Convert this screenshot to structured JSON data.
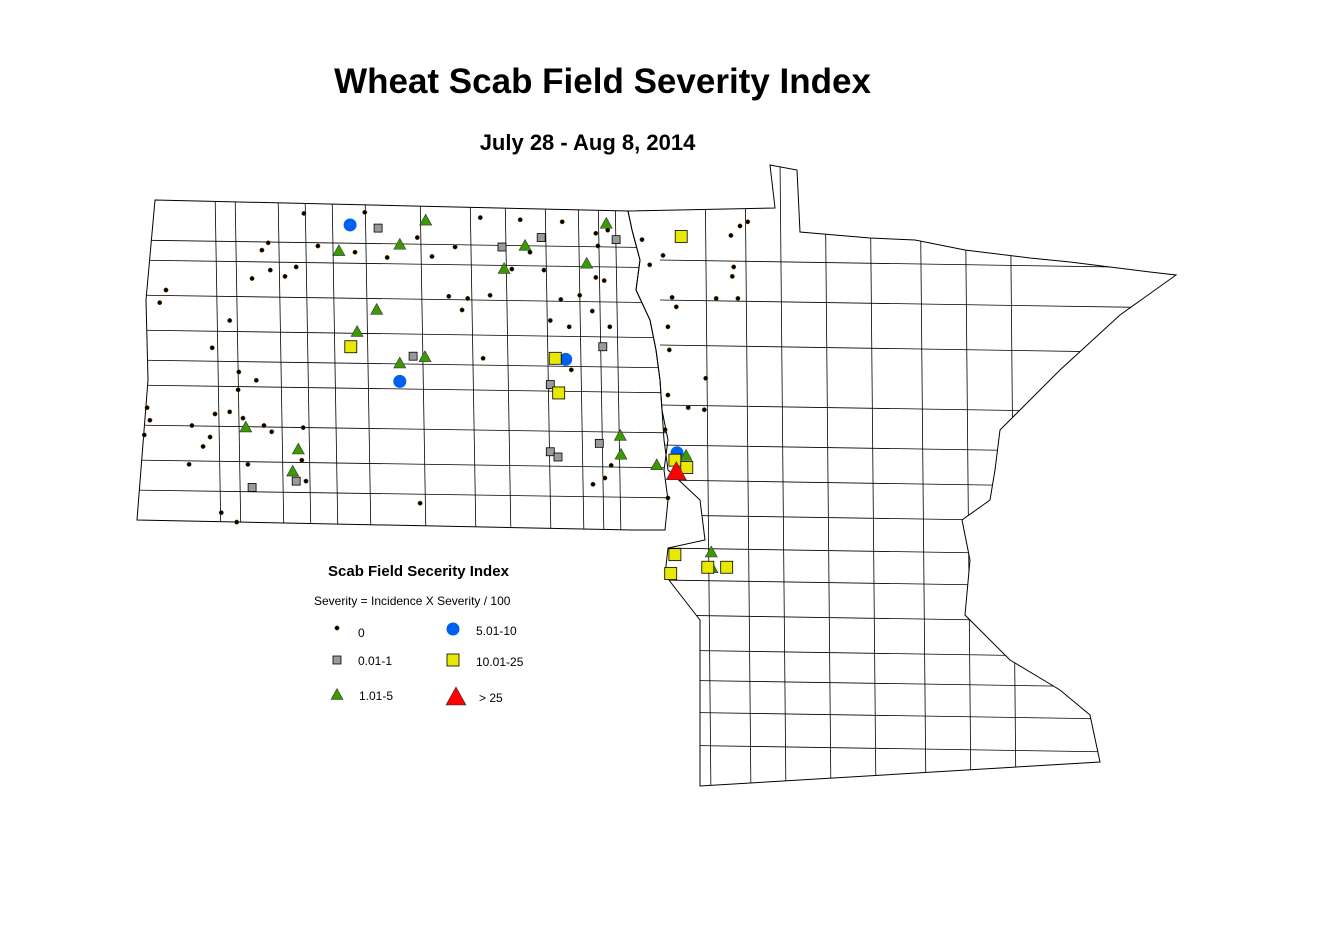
{
  "title": "Wheat Scab Field Severity Index",
  "subtitle": "July 28 - Aug 8, 2014",
  "legend": {
    "title": "Scab Field Secerity Index",
    "formula": "Severity = Incidence X Severity / 100",
    "classes": [
      {
        "label": "0",
        "symbol": "dot",
        "color": "#000000"
      },
      {
        "label": "0.01-1",
        "symbol": "square",
        "color": "#9a9a9a"
      },
      {
        "label": "1.01-5",
        "symbol": "triangle",
        "color": "#3a9a00"
      },
      {
        "label": "5.01-10",
        "symbol": "circle",
        "color": "#0060f0"
      },
      {
        "label": "10.01-25",
        "symbol": "square",
        "color": "#e8e800"
      },
      {
        "label": "> 25",
        "symbol": "triangle",
        "color": "#ff0000"
      }
    ]
  },
  "map_data": {
    "regions": [
      "North Dakota",
      "Minnesota"
    ],
    "points": {
      "0": [
        [
          -101.73,
          48.92
        ],
        [
          -100.86,
          48.93
        ],
        [
          -101.53,
          48.61
        ],
        [
          -101.0,
          48.55
        ],
        [
          -100.54,
          48.5
        ],
        [
          -100.11,
          48.69
        ],
        [
          -99.9,
          48.51
        ],
        [
          -99.57,
          48.6
        ],
        [
          -99.21,
          48.88
        ],
        [
          -98.64,
          48.86
        ],
        [
          -98.04,
          48.84
        ],
        [
          -97.56,
          48.73
        ],
        [
          -97.39,
          48.76
        ],
        [
          -97.53,
          48.61
        ],
        [
          -98.5,
          48.55
        ],
        [
          -98.76,
          48.39
        ],
        [
          -98.3,
          48.38
        ],
        [
          -97.56,
          48.31
        ],
        [
          -97.44,
          48.28
        ],
        [
          -96.9,
          48.67
        ],
        [
          -96.79,
          48.43
        ],
        [
          -96.6,
          48.52
        ],
        [
          -95.5,
          48.8
        ],
        [
          -95.39,
          48.84
        ],
        [
          -95.63,
          48.71
        ],
        [
          -95.59,
          48.41
        ],
        [
          -95.61,
          48.32
        ],
        [
          -96.47,
          48.12
        ],
        [
          -96.41,
          48.03
        ],
        [
          -96.53,
          47.84
        ],
        [
          -96.51,
          47.62
        ],
        [
          -95.84,
          48.11
        ],
        [
          -95.53,
          48.11
        ],
        [
          -97.79,
          48.14
        ],
        [
          -98.06,
          48.1
        ],
        [
          -97.61,
          47.99
        ],
        [
          -97.36,
          47.84
        ],
        [
          -98.21,
          47.9
        ],
        [
          -97.94,
          47.84
        ],
        [
          -99.66,
          48.13
        ],
        [
          -99.39,
          48.11
        ],
        [
          -99.07,
          48.14
        ],
        [
          -99.47,
          48.0
        ],
        [
          -99.17,
          47.54
        ],
        [
          -97.91,
          47.43
        ],
        [
          -95.99,
          47.35
        ],
        [
          -96.53,
          47.19
        ],
        [
          -96.24,
          47.07
        ],
        [
          -96.01,
          47.05
        ],
        [
          -96.57,
          46.86
        ],
        [
          -97.34,
          46.52
        ],
        [
          -97.43,
          46.4
        ],
        [
          -97.6,
          46.34
        ],
        [
          -96.53,
          46.21
        ],
        [
          -100.07,
          46.16
        ],
        [
          -101.74,
          46.88
        ],
        [
          -101.7,
          46.37
        ],
        [
          -102.91,
          46.07
        ],
        [
          -102.69,
          45.98
        ],
        [
          -103.7,
          48.19
        ],
        [
          -103.79,
          48.07
        ],
        [
          -102.79,
          47.9
        ],
        [
          -103.04,
          47.64
        ],
        [
          -102.66,
          47.41
        ],
        [
          -102.41,
          47.33
        ],
        [
          -102.67,
          47.24
        ],
        [
          -103.97,
          47.07
        ],
        [
          -103.93,
          46.95
        ],
        [
          -104.01,
          46.81
        ],
        [
          -103.33,
          46.9
        ],
        [
          -103.0,
          47.01
        ],
        [
          -103.07,
          46.79
        ],
        [
          -102.79,
          47.03
        ],
        [
          -102.6,
          46.97
        ],
        [
          -102.3,
          46.9
        ],
        [
          -102.19,
          46.84
        ],
        [
          -103.17,
          46.7
        ],
        [
          -103.37,
          46.53
        ],
        [
          -102.53,
          46.53
        ],
        [
          -101.76,
          46.57
        ],
        [
          -102.24,
          48.64
        ],
        [
          -102.33,
          48.57
        ],
        [
          -102.47,
          48.3
        ],
        [
          -102.21,
          48.38
        ],
        [
          -102.0,
          48.32
        ],
        [
          -101.84,
          48.41
        ]
      ],
      "0.01-1": [
        [
          -100.67,
          48.78
        ],
        [
          -98.9,
          48.6
        ],
        [
          -98.34,
          48.69
        ],
        [
          -97.27,
          48.67
        ],
        [
          -100.17,
          47.56
        ],
        [
          -97.46,
          47.65
        ],
        [
          -98.21,
          47.29
        ],
        [
          -97.51,
          46.73
        ],
        [
          -98.21,
          46.65
        ],
        [
          -98.1,
          46.6
        ],
        [
          -101.84,
          46.37
        ],
        [
          -102.47,
          46.31
        ]
      ],
      "1.01-5": [
        [
          -99.99,
          48.86
        ],
        [
          -97.41,
          48.83
        ],
        [
          -101.23,
          48.57
        ],
        [
          -100.36,
          48.63
        ],
        [
          -98.57,
          48.62
        ],
        [
          -97.69,
          48.45
        ],
        [
          -98.87,
          48.4
        ],
        [
          -100.69,
          48.01
        ],
        [
          -100.97,
          47.8
        ],
        [
          -100.0,
          47.56
        ],
        [
          -100.36,
          47.5
        ],
        [
          -97.21,
          46.81
        ],
        [
          -97.2,
          46.63
        ],
        [
          -96.69,
          46.53
        ],
        [
          -96.27,
          46.62
        ],
        [
          -102.56,
          46.89
        ],
        [
          -101.81,
          46.68
        ],
        [
          -101.89,
          46.47
        ],
        [
          -95.91,
          45.7
        ],
        [
          -95.9,
          45.55
        ]
      ],
      "5.01-10": [
        [
          -101.07,
          48.81
        ],
        [
          -97.99,
          47.53
        ],
        [
          -100.36,
          47.32
        ],
        [
          -96.4,
          46.64
        ]
      ],
      "10.01-25": [
        [
          -96.34,
          48.7
        ],
        [
          -101.06,
          47.65
        ],
        [
          -98.14,
          47.54
        ],
        [
          -98.09,
          47.21
        ],
        [
          -96.43,
          46.57
        ],
        [
          -96.26,
          46.5
        ],
        [
          -96.43,
          45.67
        ],
        [
          -96.49,
          45.49
        ],
        [
          -95.96,
          45.55
        ],
        [
          -95.69,
          45.55
        ]
      ],
      "> 25": [
        [
          -96.41,
          46.47
        ]
      ]
    }
  }
}
